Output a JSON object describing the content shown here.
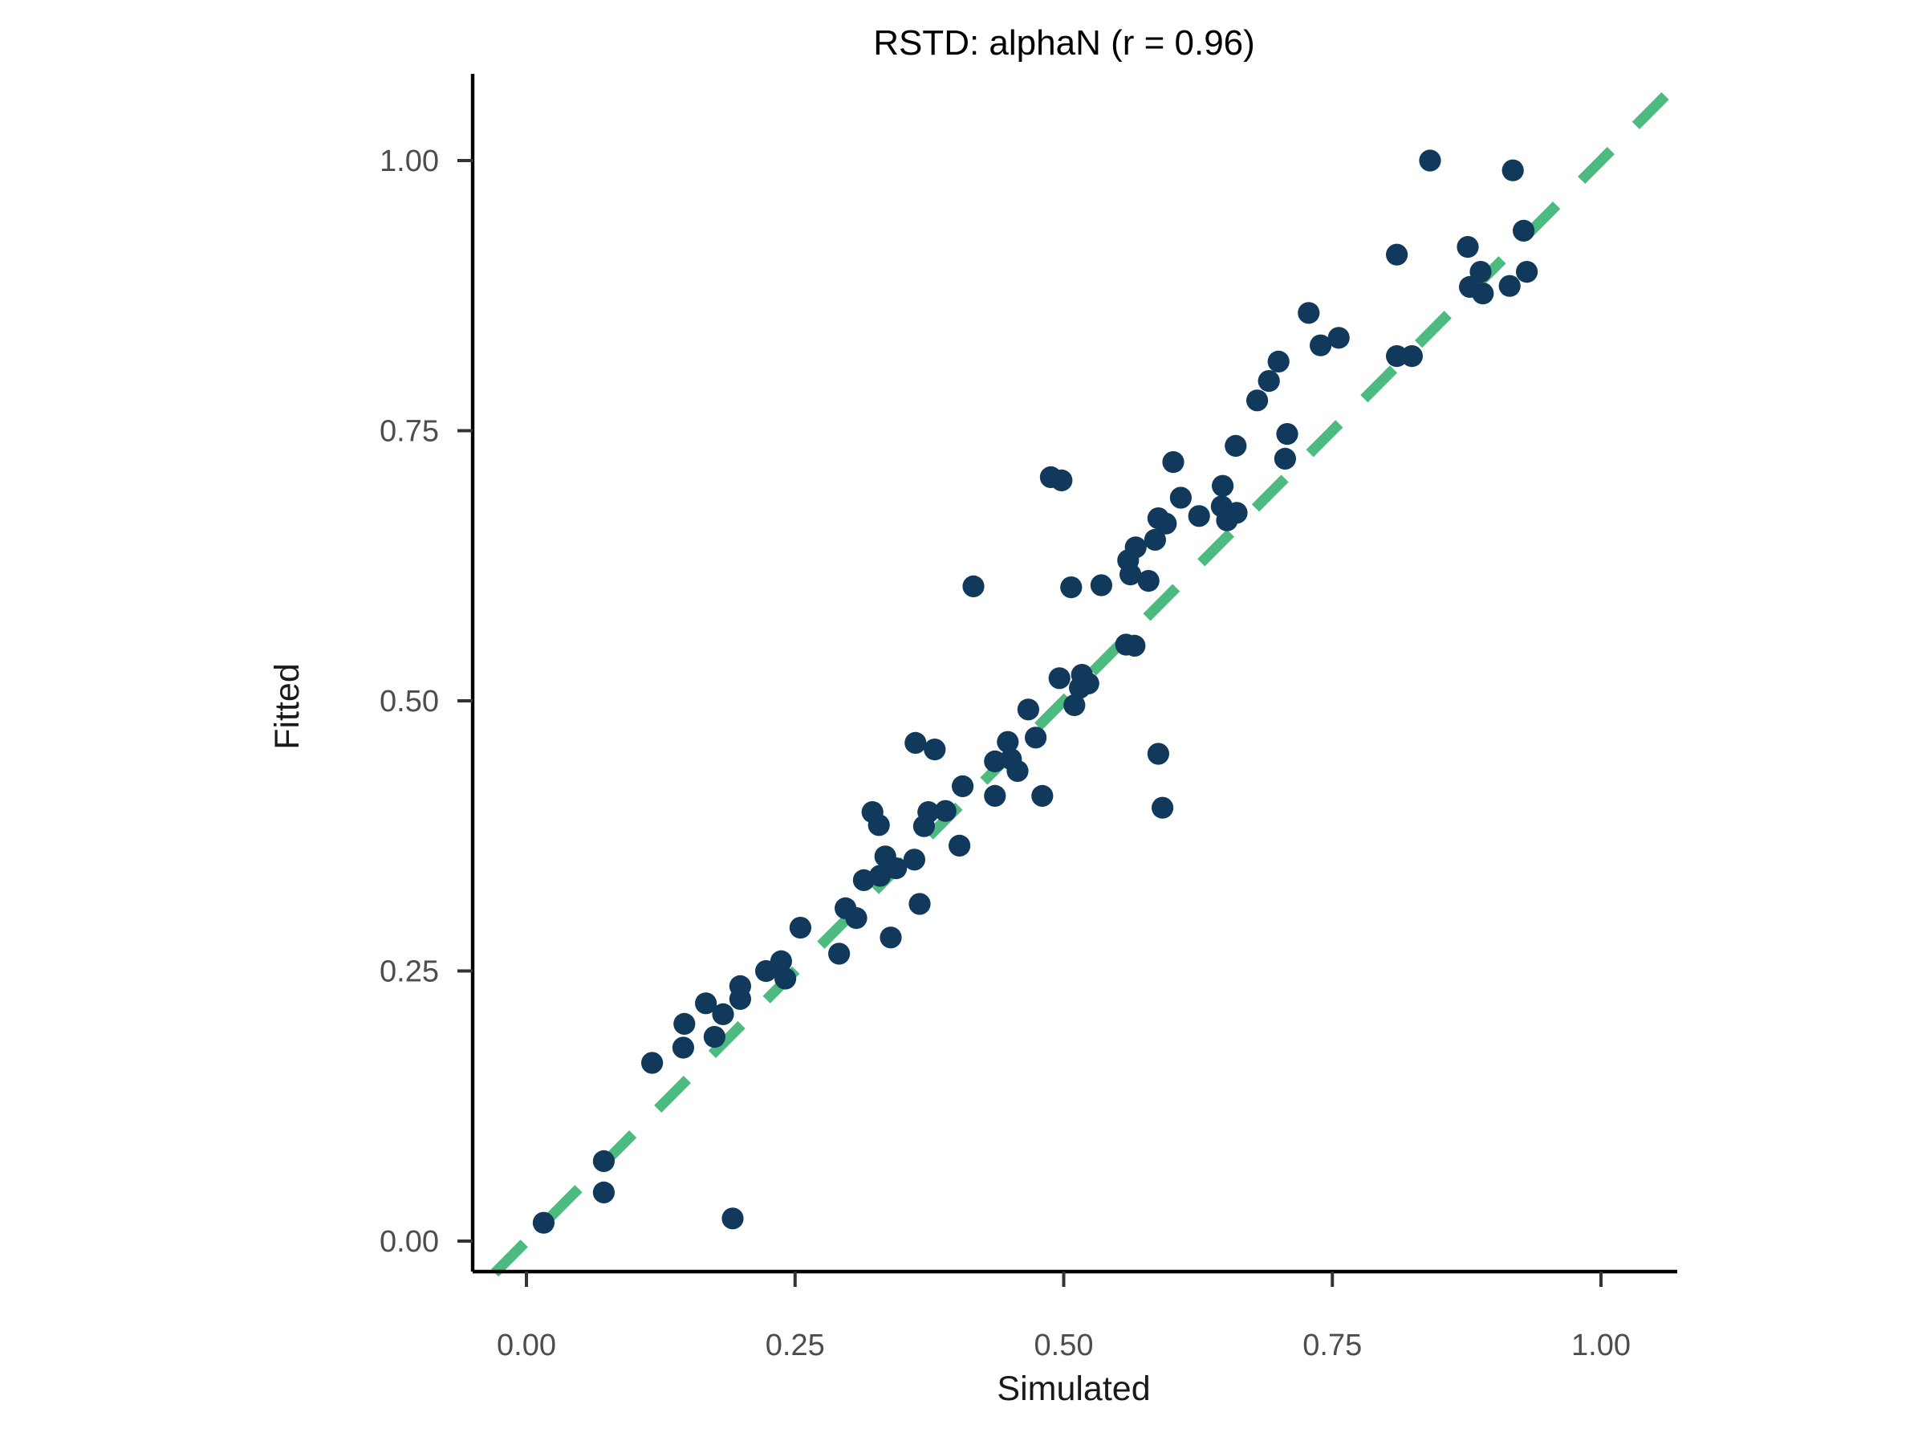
{
  "chart_data": {
    "type": "scatter",
    "title": "RSTD: alphaN (r = 0.96)",
    "xlabel": "Simulated",
    "ylabel": "Fitted",
    "x_tick_labels": [
      "0.00",
      "0.25",
      "0.50",
      "0.75",
      "1.00"
    ],
    "y_tick_labels": [
      "0.00",
      "0.25",
      "0.50",
      "0.75",
      "1.00"
    ],
    "x_tick_values": [
      0,
      0.25,
      0.5,
      0.75,
      1.0
    ],
    "y_tick_values": [
      0,
      0.25,
      0.5,
      0.75,
      1.0
    ],
    "xlim": [
      -0.05,
      1.06
    ],
    "ylim": [
      -0.03,
      1.08
    ],
    "grid": false,
    "legend": "none",
    "point_color": "#11395c",
    "identity_line": {
      "style": "dashed",
      "color": "#4dbb7f",
      "slope": 1,
      "intercept": 0
    },
    "axis_color": "#000000",
    "tick_label_color": "#4d4d4d",
    "background_color": "#ffffff",
    "points": [
      [
        0.016,
        0.017
      ],
      [
        0.072,
        0.074
      ],
      [
        0.072,
        0.045
      ],
      [
        0.192,
        0.021
      ],
      [
        0.117,
        0.165
      ],
      [
        0.147,
        0.201
      ],
      [
        0.146,
        0.179
      ],
      [
        0.167,
        0.22
      ],
      [
        0.183,
        0.21
      ],
      [
        0.175,
        0.189
      ],
      [
        0.199,
        0.236
      ],
      [
        0.199,
        0.224
      ],
      [
        0.223,
        0.25
      ],
      [
        0.237,
        0.259
      ],
      [
        0.241,
        0.243
      ],
      [
        0.255,
        0.29
      ],
      [
        0.291,
        0.266
      ],
      [
        0.297,
        0.308
      ],
      [
        0.307,
        0.299
      ],
      [
        0.314,
        0.334
      ],
      [
        0.334,
        0.356
      ],
      [
        0.344,
        0.345
      ],
      [
        0.329,
        0.338
      ],
      [
        0.361,
        0.353
      ],
      [
        0.403,
        0.366
      ],
      [
        0.366,
        0.312
      ],
      [
        0.339,
        0.281
      ],
      [
        0.322,
        0.397
      ],
      [
        0.328,
        0.385
      ],
      [
        0.374,
        0.397
      ],
      [
        0.39,
        0.398
      ],
      [
        0.37,
        0.384
      ],
      [
        0.406,
        0.421
      ],
      [
        0.436,
        0.444
      ],
      [
        0.451,
        0.446
      ],
      [
        0.457,
        0.435
      ],
      [
        0.436,
        0.412
      ],
      [
        0.48,
        0.412
      ],
      [
        0.362,
        0.461
      ],
      [
        0.38,
        0.455
      ],
      [
        0.467,
        0.492
      ],
      [
        0.474,
        0.466
      ],
      [
        0.448,
        0.462
      ],
      [
        0.496,
        0.521
      ],
      [
        0.517,
        0.524
      ],
      [
        0.523,
        0.516
      ],
      [
        0.515,
        0.512
      ],
      [
        0.51,
        0.496
      ],
      [
        0.588,
        0.451
      ],
      [
        0.592,
        0.401
      ],
      [
        0.488,
        0.707
      ],
      [
        0.498,
        0.704
      ],
      [
        0.416,
        0.606
      ],
      [
        0.507,
        0.605
      ],
      [
        0.535,
        0.607
      ],
      [
        0.558,
        0.552
      ],
      [
        0.566,
        0.551
      ],
      [
        0.56,
        0.63
      ],
      [
        0.562,
        0.617
      ],
      [
        0.579,
        0.611
      ],
      [
        0.567,
        0.642
      ],
      [
        0.585,
        0.649
      ],
      [
        0.588,
        0.669
      ],
      [
        0.595,
        0.664
      ],
      [
        0.626,
        0.671
      ],
      [
        0.647,
        0.68
      ],
      [
        0.661,
        0.674
      ],
      [
        0.652,
        0.667
      ],
      [
        0.648,
        0.699
      ],
      [
        0.609,
        0.688
      ],
      [
        0.602,
        0.721
      ],
      [
        0.66,
        0.736
      ],
      [
        0.706,
        0.724
      ],
      [
        0.68,
        0.778
      ],
      [
        0.691,
        0.796
      ],
      [
        0.7,
        0.814
      ],
      [
        0.728,
        0.859
      ],
      [
        0.739,
        0.829
      ],
      [
        0.756,
        0.836
      ],
      [
        0.708,
        0.747
      ],
      [
        0.81,
        0.819
      ],
      [
        0.824,
        0.819
      ],
      [
        0.81,
        0.913
      ],
      [
        0.876,
        0.92
      ],
      [
        0.928,
        0.935
      ],
      [
        0.888,
        0.897
      ],
      [
        0.878,
        0.883
      ],
      [
        0.89,
        0.877
      ],
      [
        0.915,
        0.884
      ],
      [
        0.931,
        0.897
      ],
      [
        0.841,
        1.0
      ],
      [
        0.918,
        0.991
      ]
    ]
  }
}
